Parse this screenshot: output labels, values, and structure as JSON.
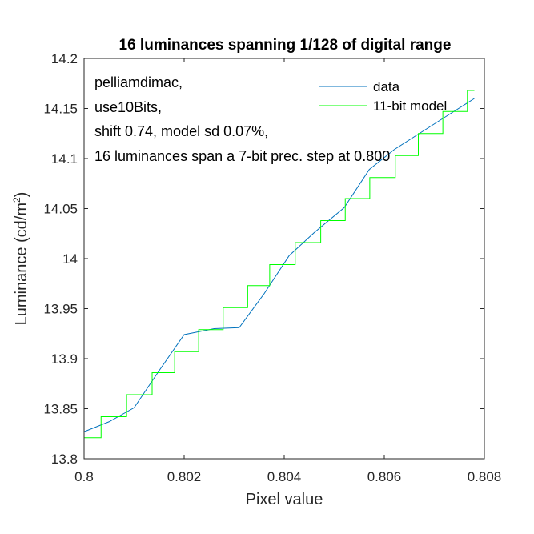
{
  "chart_data": {
    "type": "line",
    "title": "16 luminances spanning 1/128 of digital range",
    "xlabel": "Pixel value",
    "ylabel": "Luminance (cd/m",
    "ylabel_sup": "2",
    "ylabel_close": ")",
    "xlim": [
      0.8,
      0.808
    ],
    "ylim": [
      13.8,
      14.2
    ],
    "x_ticks": [
      0.8,
      0.802,
      0.804,
      0.806,
      0.808
    ],
    "x_tick_labels": [
      "0.8",
      "0.802",
      "0.804",
      "0.806",
      "0.808"
    ],
    "y_ticks": [
      13.8,
      13.85,
      13.9,
      13.95,
      14.0,
      14.05,
      14.1,
      14.15,
      14.2
    ],
    "y_tick_labels": [
      "13.8",
      "13.85",
      "13.9",
      "13.95",
      "14",
      "14.05",
      "14.1",
      "14.15",
      "14.2"
    ],
    "grid": false,
    "legend_position": "top-right",
    "annotations": [
      "pelliamdimac,",
      "use10Bits,",
      "shift 0.74, model sd 0.07%,",
      "16 luminances span a 7-bit prec. step at 0.800"
    ],
    "series": [
      {
        "name": "data",
        "color": "#0072BD",
        "style": "line",
        "x": [
          0.8,
          0.8005,
          0.801,
          0.8015,
          0.802,
          0.8026,
          0.8031,
          0.8036,
          0.8041,
          0.8046,
          0.8052,
          0.8057,
          0.8062,
          0.8067,
          0.8072,
          0.8078
        ],
        "y": [
          13.827,
          13.837,
          13.851,
          13.888,
          13.924,
          13.93,
          13.931,
          13.965,
          14.003,
          14.026,
          14.051,
          14.089,
          14.109,
          14.125,
          14.141,
          14.16
        ]
      },
      {
        "name": "11-bit model",
        "color": "#00FF00",
        "style": "step",
        "x": [
          0.8,
          0.80034,
          0.80085,
          0.80136,
          0.80181,
          0.80229,
          0.80278,
          0.80327,
          0.80371,
          0.80422,
          0.80473,
          0.80522,
          0.80571,
          0.80622,
          0.80668,
          0.80717,
          0.80766,
          0.8078
        ],
        "y": [
          13.821,
          13.842,
          13.864,
          13.886,
          13.907,
          13.929,
          13.951,
          13.973,
          13.994,
          14.016,
          14.038,
          14.06,
          14.081,
          14.103,
          14.125,
          14.147,
          14.168,
          14.168
        ]
      }
    ]
  }
}
